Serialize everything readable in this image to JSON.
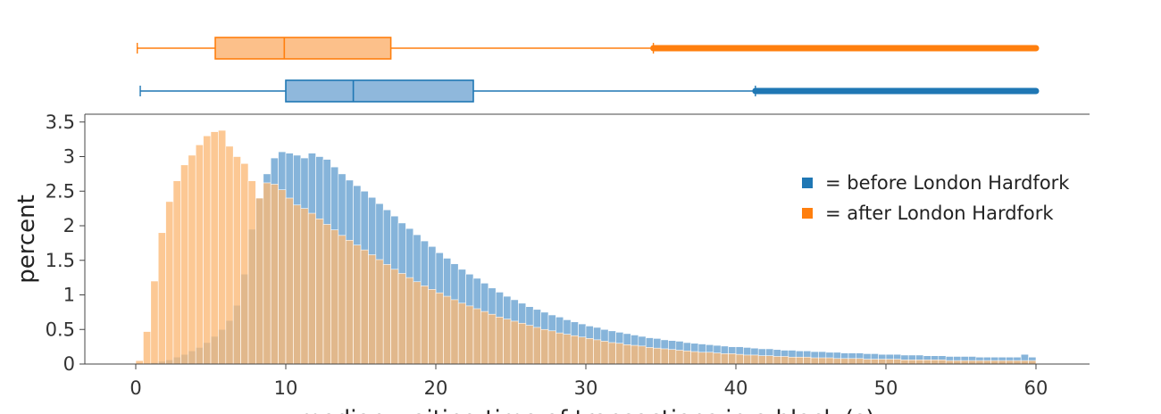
{
  "chart_data": {
    "type": "bar",
    "subtype": "overlaid histogram with marginal box plots",
    "ylabel": "percent",
    "xlabel": "median waiting time of transactions in a block (s)",
    "xlim": [
      -3.5,
      63
    ],
    "ylim": [
      0,
      3.6
    ],
    "bin_width": 0.5,
    "x_ticks": [
      0,
      10,
      20,
      30,
      40,
      50,
      60
    ],
    "y_ticks": [
      0,
      0.5,
      1,
      1.5,
      2,
      2.5,
      3,
      3.5
    ],
    "y_tick_labels": [
      "0",
      "0.5",
      "1",
      "1.5",
      "2",
      "2.5",
      "3",
      "3.5"
    ],
    "grid": false,
    "legend_position": "right",
    "series": [
      {
        "name": "before London Hardfork",
        "legend_label": "= before London Hardfork",
        "color": "#1f77b4",
        "histogram": [
          [
            0.0,
            0.0
          ],
          [
            0.5,
            0.0
          ],
          [
            1.0,
            0.02
          ],
          [
            1.5,
            0.04
          ],
          [
            2.0,
            0.06
          ],
          [
            2.5,
            0.1
          ],
          [
            3.0,
            0.14
          ],
          [
            3.5,
            0.19
          ],
          [
            4.0,
            0.24
          ],
          [
            4.5,
            0.31
          ],
          [
            5.0,
            0.4
          ],
          [
            5.5,
            0.5
          ],
          [
            6.0,
            0.63
          ],
          [
            6.5,
            0.85
          ],
          [
            7.0,
            1.3
          ],
          [
            7.5,
            1.95
          ],
          [
            8.0,
            2.4
          ],
          [
            8.5,
            2.75
          ],
          [
            9.0,
            2.98
          ],
          [
            9.5,
            3.07
          ],
          [
            10.0,
            3.05
          ],
          [
            10.5,
            3.02
          ],
          [
            11.0,
            2.98
          ],
          [
            11.5,
            3.05
          ],
          [
            12.0,
            3.0
          ],
          [
            12.5,
            2.96
          ],
          [
            13.0,
            2.85
          ],
          [
            13.5,
            2.75
          ],
          [
            14.0,
            2.66
          ],
          [
            14.5,
            2.58
          ],
          [
            15.0,
            2.5
          ],
          [
            15.5,
            2.41
          ],
          [
            16.0,
            2.32
          ],
          [
            16.5,
            2.23
          ],
          [
            17.0,
            2.14
          ],
          [
            17.5,
            2.04
          ],
          [
            18.0,
            1.96
          ],
          [
            18.5,
            1.87
          ],
          [
            19.0,
            1.78
          ],
          [
            19.5,
            1.7
          ],
          [
            20.0,
            1.61
          ],
          [
            20.5,
            1.53
          ],
          [
            21.0,
            1.45
          ],
          [
            21.5,
            1.37
          ],
          [
            22.0,
            1.3
          ],
          [
            22.5,
            1.24
          ],
          [
            23.0,
            1.17
          ],
          [
            23.5,
            1.1
          ],
          [
            24.0,
            1.04
          ],
          [
            24.5,
            0.98
          ],
          [
            25.0,
            0.93
          ],
          [
            25.5,
            0.88
          ],
          [
            26.0,
            0.83
          ],
          [
            26.5,
            0.79
          ],
          [
            27.0,
            0.75
          ],
          [
            27.5,
            0.71
          ],
          [
            28.0,
            0.68
          ],
          [
            28.5,
            0.64
          ],
          [
            29.0,
            0.61
          ],
          [
            29.5,
            0.58
          ],
          [
            30.0,
            0.55
          ],
          [
            30.5,
            0.53
          ],
          [
            31.0,
            0.5
          ],
          [
            31.5,
            0.48
          ],
          [
            32.0,
            0.46
          ],
          [
            32.5,
            0.44
          ],
          [
            33.0,
            0.42
          ],
          [
            33.5,
            0.4
          ],
          [
            34.0,
            0.38
          ],
          [
            34.5,
            0.37
          ],
          [
            35.0,
            0.35
          ],
          [
            35.5,
            0.34
          ],
          [
            36.0,
            0.33
          ],
          [
            36.5,
            0.31
          ],
          [
            37.0,
            0.3
          ],
          [
            37.5,
            0.29
          ],
          [
            38.0,
            0.28
          ],
          [
            38.5,
            0.27
          ],
          [
            39.0,
            0.26
          ],
          [
            39.5,
            0.25
          ],
          [
            40.0,
            0.25
          ],
          [
            40.5,
            0.24
          ],
          [
            41.0,
            0.23
          ],
          [
            41.5,
            0.22
          ],
          [
            42.0,
            0.22
          ],
          [
            42.5,
            0.21
          ],
          [
            43.0,
            0.2
          ],
          [
            43.5,
            0.2
          ],
          [
            44.0,
            0.19
          ],
          [
            44.5,
            0.19
          ],
          [
            45.0,
            0.18
          ],
          [
            45.5,
            0.18
          ],
          [
            46.0,
            0.17
          ],
          [
            46.5,
            0.17
          ],
          [
            47.0,
            0.16
          ],
          [
            47.5,
            0.16
          ],
          [
            48.0,
            0.16
          ],
          [
            48.5,
            0.15
          ],
          [
            49.0,
            0.15
          ],
          [
            49.5,
            0.14
          ],
          [
            50.0,
            0.14
          ],
          [
            50.5,
            0.14
          ],
          [
            51.0,
            0.13
          ],
          [
            51.5,
            0.13
          ],
          [
            52.0,
            0.13
          ],
          [
            52.5,
            0.12
          ],
          [
            53.0,
            0.12
          ],
          [
            53.5,
            0.12
          ],
          [
            54.0,
            0.11
          ],
          [
            54.5,
            0.11
          ],
          [
            55.0,
            0.11
          ],
          [
            55.5,
            0.11
          ],
          [
            56.0,
            0.1
          ],
          [
            56.5,
            0.1
          ],
          [
            57.0,
            0.1
          ],
          [
            57.5,
            0.1
          ],
          [
            58.0,
            0.1
          ],
          [
            58.5,
            0.1
          ],
          [
            59.0,
            0.14
          ],
          [
            59.5,
            0.1
          ]
        ],
        "box": {
          "min": 0.3,
          "q1": 10.0,
          "median": 14.5,
          "q3": 22.5,
          "upper_fence": 41.3,
          "outliers_range": [
            41.3,
            60
          ]
        }
      },
      {
        "name": "after London Hardfork",
        "legend_label": "= after London Hardfork",
        "color": "#ff7f0e",
        "histogram": [
          [
            0.0,
            0.05
          ],
          [
            0.5,
            0.47
          ],
          [
            1.0,
            1.2
          ],
          [
            1.5,
            1.9
          ],
          [
            2.0,
            2.35
          ],
          [
            2.5,
            2.65
          ],
          [
            3.0,
            2.88
          ],
          [
            3.5,
            3.02
          ],
          [
            4.0,
            3.17
          ],
          [
            4.5,
            3.3
          ],
          [
            5.0,
            3.36
          ],
          [
            5.5,
            3.38
          ],
          [
            6.0,
            3.15
          ],
          [
            6.5,
            3.0
          ],
          [
            7.0,
            2.9
          ],
          [
            7.5,
            2.65
          ],
          [
            8.0,
            2.4
          ],
          [
            8.5,
            2.62
          ],
          [
            9.0,
            2.6
          ],
          [
            9.5,
            2.52
          ],
          [
            10.0,
            2.4
          ],
          [
            10.5,
            2.3
          ],
          [
            11.0,
            2.25
          ],
          [
            11.5,
            2.18
          ],
          [
            12.0,
            2.1
          ],
          [
            12.5,
            2.02
          ],
          [
            13.0,
            1.94
          ],
          [
            13.5,
            1.86
          ],
          [
            14.0,
            1.79
          ],
          [
            14.5,
            1.72
          ],
          [
            15.0,
            1.65
          ],
          [
            15.5,
            1.58
          ],
          [
            16.0,
            1.51
          ],
          [
            16.5,
            1.44
          ],
          [
            17.0,
            1.37
          ],
          [
            17.5,
            1.31
          ],
          [
            18.0,
            1.25
          ],
          [
            18.5,
            1.19
          ],
          [
            19.0,
            1.13
          ],
          [
            19.5,
            1.08
          ],
          [
            20.0,
            1.03
          ],
          [
            20.5,
            0.98
          ],
          [
            21.0,
            0.93
          ],
          [
            21.5,
            0.88
          ],
          [
            22.0,
            0.84
          ],
          [
            22.5,
            0.8
          ],
          [
            23.0,
            0.76
          ],
          [
            23.5,
            0.72
          ],
          [
            24.0,
            0.68
          ],
          [
            24.5,
            0.65
          ],
          [
            25.0,
            0.62
          ],
          [
            25.5,
            0.59
          ],
          [
            26.0,
            0.56
          ],
          [
            26.5,
            0.53
          ],
          [
            27.0,
            0.5
          ],
          [
            27.5,
            0.48
          ],
          [
            28.0,
            0.45
          ],
          [
            28.5,
            0.43
          ],
          [
            29.0,
            0.41
          ],
          [
            29.5,
            0.39
          ],
          [
            30.0,
            0.37
          ],
          [
            30.5,
            0.35
          ],
          [
            31.0,
            0.33
          ],
          [
            31.5,
            0.31
          ],
          [
            32.0,
            0.3
          ],
          [
            32.5,
            0.28
          ],
          [
            33.0,
            0.27
          ],
          [
            33.5,
            0.26
          ],
          [
            34.0,
            0.24
          ],
          [
            34.5,
            0.23
          ],
          [
            35.0,
            0.22
          ],
          [
            35.5,
            0.21
          ],
          [
            36.0,
            0.2
          ],
          [
            36.5,
            0.19
          ],
          [
            37.0,
            0.18
          ],
          [
            37.5,
            0.17
          ],
          [
            38.0,
            0.17
          ],
          [
            38.5,
            0.16
          ],
          [
            39.0,
            0.15
          ],
          [
            39.5,
            0.15
          ],
          [
            40.0,
            0.14
          ],
          [
            40.5,
            0.13
          ],
          [
            41.0,
            0.13
          ],
          [
            41.5,
            0.12
          ],
          [
            42.0,
            0.12
          ],
          [
            42.5,
            0.11
          ],
          [
            43.0,
            0.11
          ],
          [
            43.5,
            0.1
          ],
          [
            44.0,
            0.1
          ],
          [
            44.5,
            0.1
          ],
          [
            45.0,
            0.09
          ],
          [
            45.5,
            0.09
          ],
          [
            46.0,
            0.09
          ],
          [
            46.5,
            0.08
          ],
          [
            47.0,
            0.08
          ],
          [
            47.5,
            0.08
          ],
          [
            48.0,
            0.08
          ],
          [
            48.5,
            0.07
          ],
          [
            49.0,
            0.07
          ],
          [
            49.5,
            0.07
          ],
          [
            50.0,
            0.07
          ],
          [
            50.5,
            0.07
          ],
          [
            51.0,
            0.06
          ],
          [
            51.5,
            0.06
          ],
          [
            52.0,
            0.06
          ],
          [
            52.5,
            0.06
          ],
          [
            53.0,
            0.06
          ],
          [
            53.5,
            0.06
          ],
          [
            54.0,
            0.05
          ],
          [
            54.5,
            0.05
          ],
          [
            55.0,
            0.05
          ],
          [
            55.5,
            0.05
          ],
          [
            56.0,
            0.05
          ],
          [
            56.5,
            0.05
          ],
          [
            57.0,
            0.05
          ],
          [
            57.5,
            0.05
          ],
          [
            58.0,
            0.05
          ],
          [
            58.5,
            0.05
          ],
          [
            59.0,
            0.05
          ],
          [
            59.5,
            0.05
          ]
        ],
        "box": {
          "min": 0.1,
          "q1": 5.3,
          "median": 9.9,
          "q3": 17.0,
          "upper_fence": 34.5,
          "outliers_range": [
            34.5,
            60
          ]
        }
      }
    ]
  }
}
